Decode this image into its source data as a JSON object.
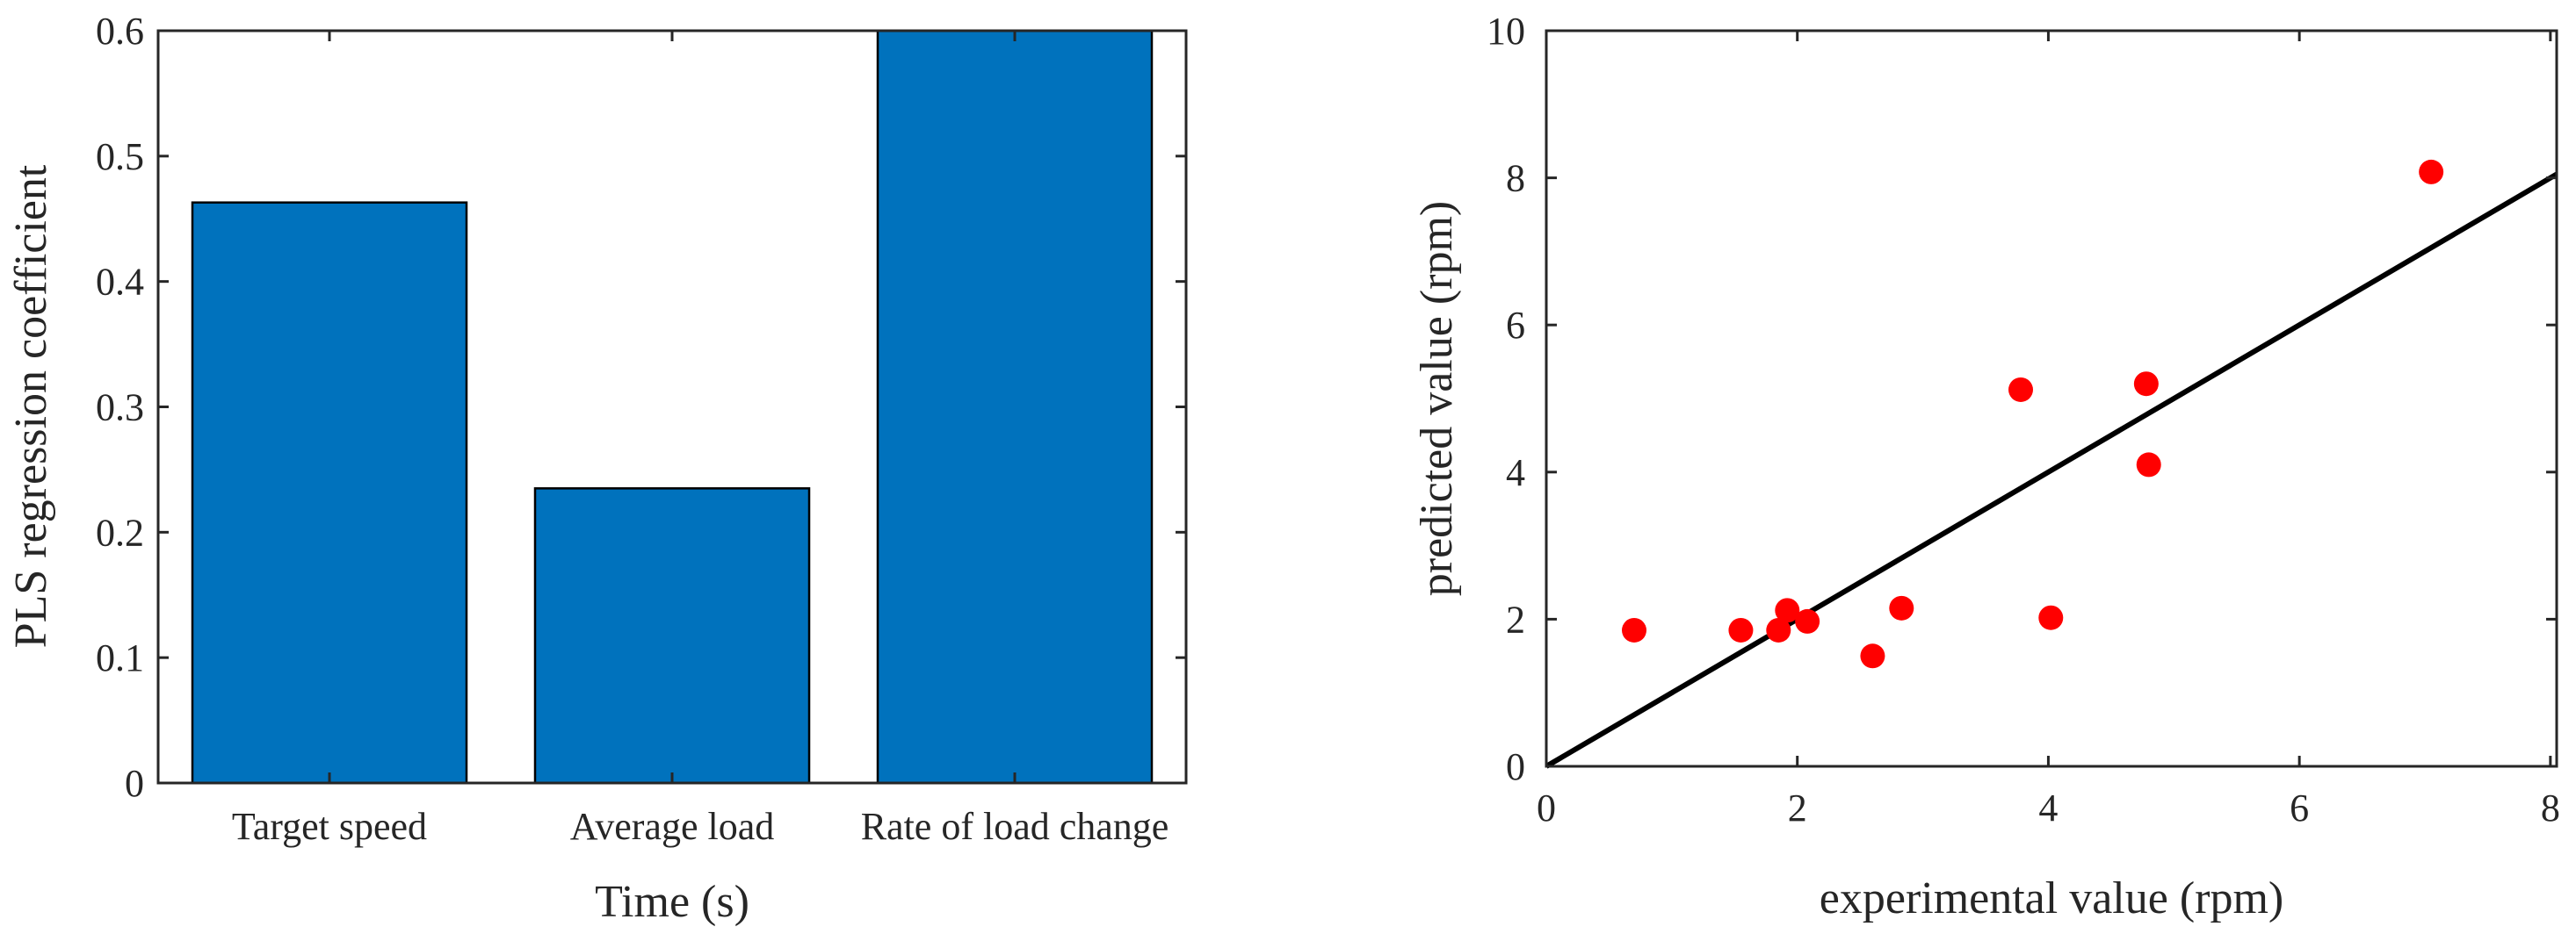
{
  "chart_data": [
    {
      "type": "bar",
      "title": "",
      "xlabel": "Time (s)",
      "ylabel": "PLS regression coefficient",
      "categories": [
        "Target speed",
        "Average load",
        "Rate of load change"
      ],
      "values": [
        0.463,
        0.235,
        0.6
      ],
      "ylim": [
        0,
        0.6
      ],
      "yticks": [
        0,
        0.1,
        0.2,
        0.3,
        0.4,
        0.5,
        0.6
      ],
      "ytick_labels": [
        "0",
        "0.1",
        "0.2",
        "0.3",
        "0.4",
        "0.5",
        "0.6"
      ],
      "bar_color": "#0072bd",
      "grid": false
    },
    {
      "type": "scatter",
      "title": "",
      "xlabel": "experimental value (rpm)",
      "ylabel": "predicted value (rpm)",
      "xlim": [
        0,
        8.05
      ],
      "ylim": [
        0,
        10
      ],
      "xticks": [
        0,
        2,
        4,
        6,
        8
      ],
      "xtick_labels": [
        "0",
        "2",
        "4",
        "6",
        "8"
      ],
      "yticks": [
        0,
        2,
        4,
        6,
        8,
        10
      ],
      "ytick_labels": [
        "0",
        "2",
        "4",
        "6",
        "8",
        "10"
      ],
      "points": [
        {
          "x": 0.7,
          "y": 1.85
        },
        {
          "x": 1.55,
          "y": 1.85
        },
        {
          "x": 1.85,
          "y": 1.85
        },
        {
          "x": 1.92,
          "y": 2.12
        },
        {
          "x": 2.08,
          "y": 1.97
        },
        {
          "x": 2.6,
          "y": 1.5
        },
        {
          "x": 2.83,
          "y": 2.15
        },
        {
          "x": 3.78,
          "y": 5.12
        },
        {
          "x": 4.02,
          "y": 2.02
        },
        {
          "x": 4.78,
          "y": 5.2
        },
        {
          "x": 4.8,
          "y": 4.1
        },
        {
          "x": 7.05,
          "y": 8.08
        }
      ],
      "fit_line": {
        "x": [
          0,
          8.05
        ],
        "y": [
          0,
          8.05
        ]
      },
      "point_color": "#ff0000",
      "line_color": "#000000",
      "grid": false
    }
  ]
}
